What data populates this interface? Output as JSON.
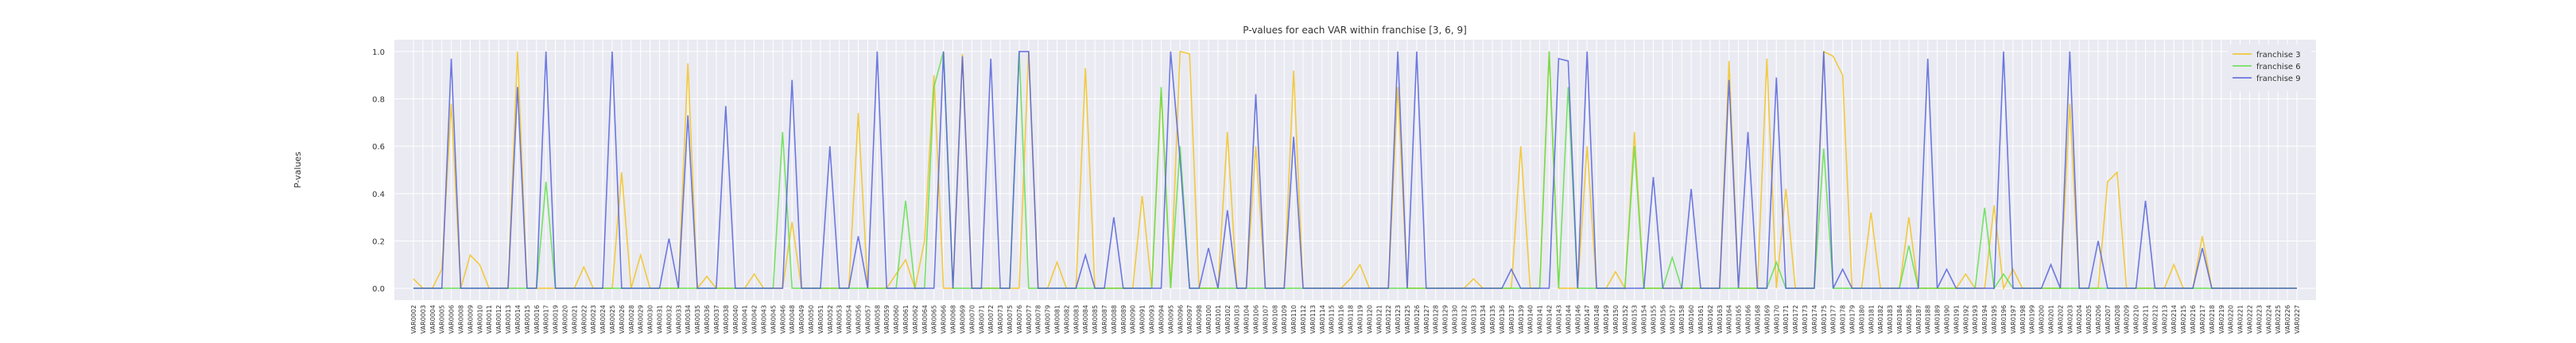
{
  "chart_data": {
    "type": "line",
    "title": "P-values for each VAR within franchise [3, 6, 9]",
    "ylabel": "P-values",
    "categories": [
      "VAR0002",
      "VAR0003",
      "VAR0004",
      "VAR0005",
      "VAR0006",
      "VAR0008",
      "VAR0009",
      "VAR0010",
      "VAR0011",
      "VAR0012",
      "VAR0013",
      "VAR0014",
      "VAR0015",
      "VAR0016",
      "VAR0017",
      "VAR0019",
      "VAR0020",
      "VAR0021",
      "VAR0022",
      "VAR0023",
      "VAR0024",
      "VAR0025",
      "VAR0026",
      "VAR0028",
      "VAR0029",
      "VAR0030",
      "VAR0031",
      "VAR0032",
      "VAR0033",
      "VAR0034",
      "VAR0035",
      "VAR0036",
      "VAR0037",
      "VAR0038",
      "VAR0040",
      "VAR0041",
      "VAR0042",
      "VAR0043",
      "VAR0045",
      "VAR0046",
      "VAR0048",
      "VAR0049",
      "VAR0050",
      "VAR0051",
      "VAR0052",
      "VAR0053",
      "VAR0054",
      "VAR0056",
      "VAR0057",
      "VAR0058",
      "VAR0059",
      "VAR0060",
      "VAR0061",
      "VAR0062",
      "VAR0064",
      "VAR0065",
      "VAR0066",
      "VAR0068",
      "VAR0069",
      "VAR0070",
      "VAR0071",
      "VAR0072",
      "VAR0073",
      "VAR0075",
      "VAR0076",
      "VAR0077",
      "VAR0078",
      "VAR0079",
      "VAR0081",
      "VAR0082",
      "VAR0083",
      "VAR0084",
      "VAR0085",
      "VAR0087",
      "VAR0088",
      "VAR0089",
      "VAR0090",
      "VAR0091",
      "VAR0093",
      "VAR0094",
      "VAR0095",
      "VAR0096",
      "VAR0097",
      "VAR0098",
      "VAR0100",
      "VAR0101",
      "VAR0102",
      "VAR0103",
      "VAR0104",
      "VAR0106",
      "VAR0107",
      "VAR0108",
      "VAR0109",
      "VAR0110",
      "VAR0112",
      "VAR0113",
      "VAR0114",
      "VAR0115",
      "VAR0116",
      "VAR0118",
      "VAR0119",
      "VAR0120",
      "VAR0121",
      "VAR0122",
      "VAR0123",
      "VAR0125",
      "VAR0126",
      "VAR0127",
      "VAR0128",
      "VAR0129",
      "VAR0130",
      "VAR0132",
      "VAR0133",
      "VAR0134",
      "VAR0135",
      "VAR0136",
      "VAR0137",
      "VAR0139",
      "VAR0140",
      "VAR0141",
      "VAR0142",
      "VAR0143",
      "VAR0144",
      "VAR0146",
      "VAR0147",
      "VAR0148",
      "VAR0149",
      "VAR0150",
      "VAR0152",
      "VAR0153",
      "VAR0154",
      "VAR0155",
      "VAR0156",
      "VAR0157",
      "VAR0158",
      "VAR0160",
      "VAR0161",
      "VAR0162",
      "VAR0163",
      "VAR0164",
      "VAR0165",
      "VAR0166",
      "VAR0168",
      "VAR0169",
      "VAR0170",
      "VAR0171",
      "VAR0172",
      "VAR0173",
      "VAR0174",
      "VAR0175",
      "VAR0177",
      "VAR0178",
      "VAR0179",
      "VAR0180",
      "VAR0181",
      "VAR0182",
      "VAR0183",
      "VAR0184",
      "VAR0186",
      "VAR0187",
      "VAR0188",
      "VAR0189",
      "VAR0190",
      "VAR0191",
      "VAR0192",
      "VAR0193",
      "VAR0194",
      "VAR0195",
      "VAR0196",
      "VAR0197",
      "VAR0198",
      "VAR0199",
      "VAR0200",
      "VAR0201",
      "VAR0202",
      "VAR0203",
      "VAR0204",
      "VAR0205",
      "VAR0206",
      "VAR0207",
      "VAR0208",
      "VAR0209",
      "VAR0210",
      "VAR0211",
      "VAR0212",
      "VAR0213",
      "VAR0214",
      "VAR0215",
      "VAR0216",
      "VAR0217",
      "VAR0218",
      "VAR0219",
      "VAR0220",
      "VAR0221",
      "VAR0222",
      "VAR0223",
      "VAR0224",
      "VAR0225",
      "VAR0226",
      "VAR0227"
    ],
    "series": [
      {
        "name": "franchise 3",
        "color": "#f2c31f",
        "values": [
          0.04,
          0,
          0,
          0.08,
          0.78,
          0,
          0.14,
          0.1,
          0,
          0,
          0,
          1.0,
          0,
          0,
          0,
          0,
          0,
          0,
          0.09,
          0,
          0,
          0,
          0.49,
          0,
          0.14,
          0,
          0,
          0,
          0,
          0.95,
          0,
          0.05,
          0,
          0,
          0,
          0,
          0.06,
          0,
          0,
          0,
          0.28,
          0,
          0,
          0,
          0,
          0,
          0,
          0.74,
          0,
          0,
          0,
          0.06,
          0.12,
          0,
          0.2,
          0.9,
          0,
          0,
          0.99,
          0,
          0,
          0,
          0,
          0,
          0,
          1.0,
          0,
          0,
          0.11,
          0,
          0,
          0.93,
          0,
          0,
          0,
          0,
          0,
          0.39,
          0,
          0.83,
          0,
          1.0,
          0.99,
          0,
          0,
          0,
          0.66,
          0,
          0,
          0.6,
          0,
          0,
          0,
          0.92,
          0,
          0,
          0,
          0,
          0,
          0.04,
          0.1,
          0,
          0,
          0,
          0.85,
          0,
          0,
          0,
          0,
          0,
          0,
          0,
          0.04,
          0,
          0,
          0,
          0,
          0.6,
          0,
          0,
          1.0,
          0,
          0,
          0,
          0.6,
          0,
          0,
          0.07,
          0,
          0.66,
          0,
          0,
          0,
          0,
          0,
          0,
          0,
          0,
          0,
          0.96,
          0,
          0,
          0,
          0.97,
          0,
          0.42,
          0,
          0,
          0,
          1.0,
          0.98,
          0.9,
          0,
          0,
          0.32,
          0,
          0,
          0,
          0.3,
          0,
          0,
          0,
          0,
          0,
          0.06,
          0,
          0,
          0.35,
          0,
          0.08,
          0,
          0,
          0,
          0,
          0,
          0.78,
          0,
          0,
          0,
          0.45,
          0.49,
          0,
          0,
          0,
          0,
          0,
          0.1,
          0,
          0,
          0.22,
          0,
          0,
          0,
          0,
          0,
          0,
          0,
          0,
          0,
          0
        ]
      },
      {
        "name": "franchise 6",
        "color": "#5fe04a",
        "values": [
          0,
          0,
          0,
          0,
          0,
          0,
          0,
          0,
          0,
          0,
          0,
          0,
          0,
          0,
          0.45,
          0,
          0,
          0,
          0,
          0,
          0,
          0,
          0,
          0,
          0,
          0,
          0,
          0,
          0,
          0,
          0,
          0,
          0,
          0,
          0,
          0,
          0,
          0,
          0,
          0.66,
          0,
          0,
          0,
          0,
          0,
          0,
          0,
          0,
          0,
          0,
          0,
          0,
          0.37,
          0,
          0,
          0.85,
          1.0,
          0,
          0,
          0,
          0,
          0,
          0,
          0,
          1.0,
          0,
          0,
          0,
          0,
          0,
          0,
          0,
          0,
          0,
          0,
          0,
          0,
          0,
          0,
          0.85,
          0,
          0.6,
          0,
          0,
          0,
          0,
          0,
          0,
          0,
          0,
          0,
          0,
          0,
          0,
          0,
          0,
          0,
          0,
          0,
          0,
          0,
          0,
          0,
          0,
          0,
          0,
          0,
          0,
          0,
          0,
          0,
          0,
          0,
          0,
          0,
          0,
          0,
          0,
          0,
          0,
          1.0,
          0,
          0.85,
          0,
          0,
          0,
          0,
          0,
          0,
          0.6,
          0,
          0,
          0,
          0.13,
          0,
          0,
          0,
          0,
          0,
          0,
          0,
          0,
          0,
          0,
          0.11,
          0,
          0,
          0,
          0,
          0.59,
          0,
          0,
          0,
          0,
          0,
          0,
          0,
          0,
          0.18,
          0,
          0,
          0,
          0,
          0,
          0,
          0,
          0.34,
          0,
          0.06,
          0,
          0,
          0,
          0,
          0,
          0,
          0,
          0,
          0,
          0,
          0,
          0,
          0,
          0,
          0,
          0,
          0,
          0,
          0,
          0,
          0,
          0,
          0,
          0,
          0,
          0,
          0,
          0,
          0,
          0,
          0
        ]
      },
      {
        "name": "franchise 9",
        "color": "#5563dc",
        "values": [
          0,
          0,
          0,
          0,
          0.97,
          0,
          0,
          0,
          0,
          0,
          0,
          0.85,
          0,
          0,
          1.0,
          0,
          0,
          0,
          0,
          0,
          0,
          1.0,
          0,
          0,
          0,
          0,
          0,
          0.21,
          0,
          0.73,
          0,
          0,
          0,
          0.77,
          0,
          0,
          0,
          0,
          0,
          0,
          0.88,
          0,
          0,
          0,
          0.6,
          0,
          0,
          0.22,
          0,
          1.0,
          0,
          0,
          0,
          0,
          0,
          0,
          1.0,
          0,
          0.98,
          0,
          0,
          0.97,
          0,
          0,
          1.0,
          1.0,
          0,
          0,
          0,
          0,
          0,
          0.14,
          0,
          0,
          0.3,
          0,
          0,
          0,
          0,
          0,
          1.0,
          0.54,
          0,
          0,
          0.17,
          0,
          0.33,
          0,
          0,
          0.82,
          0,
          0,
          0,
          0.64,
          0,
          0,
          0,
          0,
          0,
          0,
          0,
          0,
          0,
          0,
          1.0,
          0,
          1.0,
          0,
          0,
          0,
          0,
          0,
          0,
          0,
          0,
          0,
          0.08,
          0,
          0,
          0,
          0,
          0.97,
          0.96,
          0,
          1.0,
          0,
          0,
          0,
          0,
          0,
          0,
          0.47,
          0,
          0,
          0,
          0.42,
          0,
          0,
          0,
          0.88,
          0,
          0.66,
          0,
          0,
          0.89,
          0,
          0,
          0,
          0,
          1.0,
          0,
          0.08,
          0,
          0,
          0,
          0,
          0,
          0,
          0,
          0,
          0.97,
          0,
          0.08,
          0,
          0,
          0,
          0,
          0,
          1.0,
          0,
          0,
          0,
          0,
          0.1,
          0,
          1.0,
          0,
          0,
          0.2,
          0,
          0,
          0,
          0,
          0.37,
          0,
          0,
          0,
          0,
          0,
          0.17,
          0,
          0,
          0,
          0,
          0,
          0,
          0,
          0,
          0,
          0
        ]
      }
    ],
    "ylim": [
      -0.05,
      1.05
    ],
    "yticks": [
      {
        "value": 0,
        "label": "0.0"
      },
      0.2,
      0.4,
      0.6,
      0.8,
      {
        "value": 1,
        "label": "1.0"
      }
    ],
    "grid": true,
    "legend": "upper right"
  }
}
